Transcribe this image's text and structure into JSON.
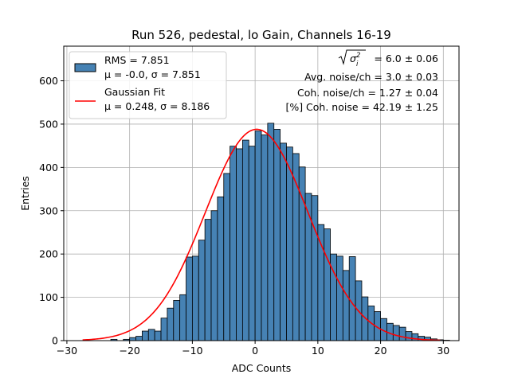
{
  "chart_data": {
    "type": "bar",
    "title": "Run 526, pedestal, lo Gain, Channels 16-19",
    "xlabel": "ADC Counts",
    "ylabel": "Entries",
    "xlim": [
      -30.5,
      32.5
    ],
    "ylim": [
      0,
      680
    ],
    "xticks": [
      -30,
      -20,
      -10,
      0,
      10,
      20,
      30
    ],
    "xtick_labels": [
      "−30",
      "−20",
      "−10",
      "0",
      "10",
      "20",
      "30"
    ],
    "yticks": [
      0,
      100,
      200,
      300,
      400,
      500,
      600
    ],
    "ytick_labels": [
      "0",
      "100",
      "200",
      "300",
      "400",
      "500",
      "600"
    ],
    "grid": true,
    "bin_width": 1,
    "bins_left_edge": -23,
    "series": [
      {
        "name": "RMS = 7.851",
        "name_line2": "μ = -0.0, σ = 7.851",
        "kind": "histogram",
        "color": "#4682b4",
        "edge_color": "#000000",
        "values": [
          3,
          0,
          3,
          7,
          10,
          22,
          26,
          22,
          52,
          75,
          93,
          106,
          193,
          195,
          232,
          280,
          300,
          332,
          386,
          449,
          443,
          463,
          449,
          484,
          475,
          502,
          488,
          456,
          447,
          432,
          401,
          340,
          335,
          268,
          258,
          200,
          195,
          162,
          194,
          138,
          101,
          80,
          67,
          51,
          40,
          35,
          31,
          21,
          16,
          10,
          8,
          4,
          2,
          1
        ]
      },
      {
        "name": "Gaussian Fit",
        "name_line2": "μ = 0.248, σ = 8.186",
        "kind": "line",
        "color": "#ff0000",
        "mu": 0.248,
        "sigma": 8.186,
        "amplitude": 488,
        "x_range": [
          -27.5,
          29.5
        ]
      }
    ],
    "legend_position": "top-left",
    "annotations": [
      {
        "type": "sqrt-sigma",
        "value": "= 6.0 ± 0.06"
      },
      {
        "type": "text",
        "text": "Avg. noise/ch = 3.0 ± 0.03"
      },
      {
        "type": "text",
        "text": "Coh. noise/ch = 1.27 ± 0.04"
      },
      {
        "type": "text",
        "text": "[%] Coh. noise = 42.19 ± 1.25"
      }
    ]
  }
}
